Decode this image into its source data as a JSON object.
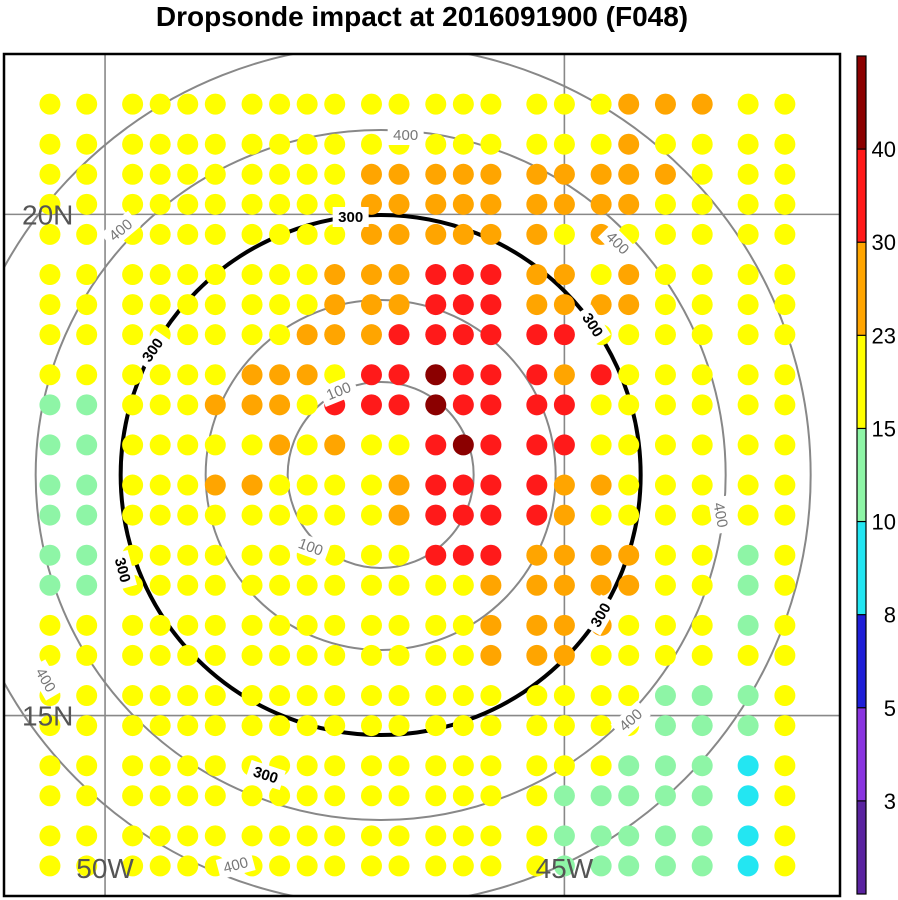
{
  "chart_data": {
    "type": "scatter",
    "title": "Dropsonde impact at 2016091900 (F048)",
    "map": {
      "lon_ticks": [
        "50W",
        "45W"
      ],
      "lat_ticks": [
        "20N",
        "15N"
      ],
      "extent": {
        "lon_min": -51.1,
        "lon_max": -42.0,
        "lat_min": 13.2,
        "lat_max": 21.6
      },
      "gridlines_lon": [
        -50,
        -45
      ],
      "gridlines_lat": [
        15,
        20
      ]
    },
    "contours": {
      "center": {
        "lon": -47.0,
        "lat": 17.4
      },
      "levels": [
        {
          "value": 100,
          "label": "100",
          "style": "gray"
        },
        {
          "value": 200,
          "label": "",
          "style": "gray"
        },
        {
          "value": 300,
          "label": "300",
          "style": "bold"
        },
        {
          "value": 400,
          "label": "400",
          "style": "gray"
        },
        {
          "value": 500,
          "label": "",
          "style": "gray"
        }
      ]
    },
    "colorbar": {
      "levels": [
        3,
        5,
        8,
        10,
        15,
        23,
        30,
        40
      ],
      "labels": [
        "3",
        "5",
        "8",
        "10",
        "15",
        "23",
        "30",
        "40"
      ],
      "colors": [
        "#5a23a0",
        "#8a35e0",
        "#1f1fd8",
        "#23e6f2",
        "#8ef5a6",
        "#ffff00",
        "#ffa500",
        "#ff1a1a",
        "#8b0000"
      ]
    },
    "points": {
      "lon": [
        -50.6,
        -50.2,
        -49.7,
        -49.4,
        -49.1,
        -48.8,
        -48.4,
        -48.1,
        -47.8,
        -47.5,
        -47.1,
        -46.8,
        -46.4,
        -46.1,
        -45.8,
        -45.3,
        -45.0,
        -44.6,
        -44.3,
        -43.9,
        -43.5,
        -43.0,
        -42.6
      ],
      "lat": [
        21.1,
        20.7,
        20.4,
        20.1,
        19.8,
        19.4,
        19.1,
        18.8,
        18.4,
        18.1,
        17.7,
        17.3,
        17.0,
        16.6,
        16.3,
        15.9,
        15.6,
        15.2,
        14.9,
        14.5,
        14.2,
        13.8,
        13.5
      ],
      "value_grid": [
        "1111111111111111112212",
        "1111111111111111112112",
        "1111111111111111111112",
        "1111111111111111111111",
        "1111111111111111111111",
        "1111111111111111111111",
        "1111111111111111111111",
        "1111111111111111111111",
        "0011111111111111111111",
        "0011111111111111111111",
        "0011111111111111111111",
        "0011111111111111111111",
        "0011111111111111111111",
        "0011111111111111111110",
        "1111111111111111111110",
        "1111111111111111111110",
        "1111111111111111111110",
        "1111111111111111111000",
        "1111111111111111110000",
        "1111111111111111110000",
        "1111111111111111000000",
        "1111111111111111000000",
        "1111111111111111000000"
      ],
      "category_grid": [
        "FFFFFFFFFFFFFFFFFFOOOF",
        "FFFFFFFFFFFFFFFFFFOFFF",
        "FFFFFFFFFFOOOOOOOOOOFF",
        "FFFFFFFFFFOOOOOOOOOFFF",
        "FFFFFFFFFFOOOOOOFOFFFF",
        "FFFFFFFFFOOORRROOFOFFF",
        "FFFFFFFFFOOORRROOOOFFF",
        "FFFFFFFFOOORRRRRRFFFFF",
        "FFFFFFOOOFRRDRRRORFFFF",
        "GGFFFOOOFRRRDRRRRFFFFF",
        "GGFFFFFOFOFFRDRRRFFFFF",
        "GGFFFOOFFFFORRRROOFFFF",
        "GGFFFFFFFFFORRRROFFFFF",
        "GGFFFFFFFFFFRRROOOOFFG",
        "GGFFFFFFFFFFFFOOOOOFFG",
        "FFFFFFFFFFFFFFOOOOFFFG",
        "FFFFFFFFFFFFFFOOOFFFFF",
        "FFFFFFFFFFFFFFFFFFFGGG",
        "FFFFFFFFFFFFFFFFFFFGGG",
        "FFFFFFFFFFFFFFFFFFGGGC",
        "FFFFFFFFFFFFFFFFGGGGGC",
        "FFFFFFFFFFFFFFFFGGGGGC",
        "FFFFFFFFFFFFFFFFGGGGGC"
      ],
      "category_legend": {
        "G": "10-15",
        "F": "15-23",
        "O": "23-30",
        "R": "30-40",
        "D": ">40",
        "C": "8-10"
      }
    }
  }
}
